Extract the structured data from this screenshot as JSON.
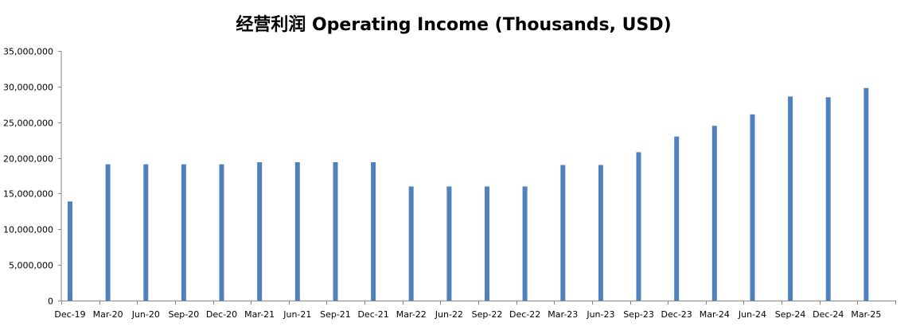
{
  "chart_data": {
    "type": "bar",
    "title": "经营利润 Operating Income (Thousands, USD)",
    "xlabel": "",
    "ylabel": "",
    "categories": [
      "Dec-19",
      "Mar-20",
      "Jun-20",
      "Sep-20",
      "Dec-20",
      "Mar-21",
      "Jun-21",
      "Sep-21",
      "Dec-21",
      "Mar-22",
      "Jun-22",
      "Sep-22",
      "Dec-22",
      "Mar-23",
      "Jun-23",
      "Sep-23",
      "Dec-23",
      "Mar-24",
      "Jun-24",
      "Sep-24",
      "Dec-24",
      "Mar-25"
    ],
    "values": [
      13900000,
      19100000,
      19100000,
      19100000,
      19100000,
      19400000,
      19400000,
      19400000,
      19400000,
      16000000,
      16000000,
      16000000,
      16000000,
      19000000,
      19000000,
      20800000,
      23000000,
      24500000,
      26100000,
      28600000,
      28500000,
      29800000
    ],
    "ylim": [
      0,
      35000000
    ],
    "yticks": [
      0,
      5000000,
      10000000,
      15000000,
      20000000,
      25000000,
      30000000,
      35000000
    ],
    "ytick_labels": [
      "0",
      "5,000,000",
      "10,000,000",
      "15,000,000",
      "20,000,000",
      "25,000,000",
      "30,000,000",
      "35,000,000"
    ],
    "grid": false,
    "legend": "none",
    "bar_color": "#4f81bd",
    "axis_color": "#868686"
  }
}
